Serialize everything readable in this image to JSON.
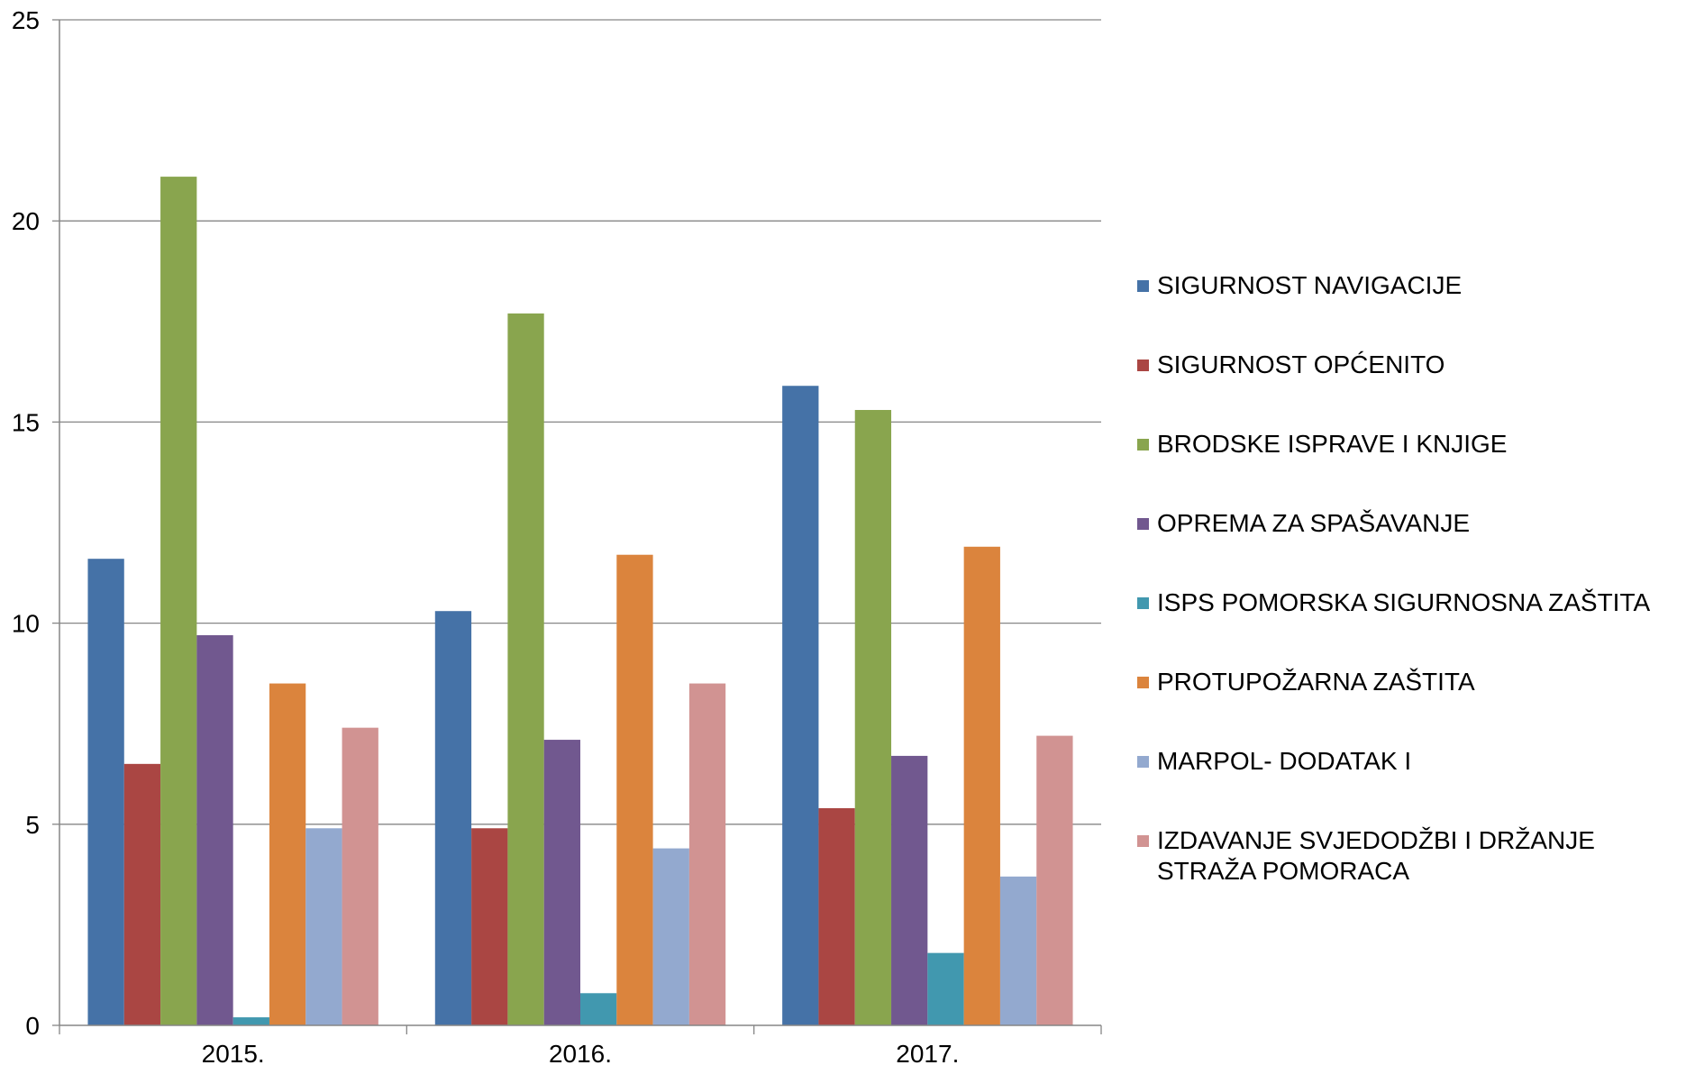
{
  "chart_data": {
    "type": "bar",
    "categories": [
      "2015.",
      "2016.",
      "2017."
    ],
    "series": [
      {
        "name": "SIGURNOST NAVIGACIJE",
        "color": "#4572A7",
        "values": [
          11.6,
          10.3,
          15.9
        ]
      },
      {
        "name": "SIGURNOST OPĆENITO",
        "color": "#AA4643",
        "values": [
          6.5,
          4.9,
          5.4
        ]
      },
      {
        "name": "BRODSKE ISPRAVE I KNJIGE",
        "color": "#89A54E",
        "values": [
          21.1,
          17.7,
          15.3
        ]
      },
      {
        "name": "OPREMA ZA SPAŠAVANJE",
        "color": "#71588F",
        "values": [
          9.7,
          7.1,
          6.7
        ]
      },
      {
        "name": "ISPS POMORSKA SIGURNOSNA ZAŠTITA",
        "color": "#4198AF",
        "values": [
          0.2,
          0.8,
          1.8
        ]
      },
      {
        "name": "PROTUPOŽARNA ZAŠTITA",
        "color": "#DB843D",
        "values": [
          8.5,
          11.7,
          11.9
        ]
      },
      {
        "name": "MARPOL- DODATAK I",
        "color": "#93A9CF",
        "values": [
          4.9,
          4.4,
          3.7
        ]
      },
      {
        "name": "IZDAVANJE SVJEDODŽBI I DRŽANJE STRAŽA POMORACA",
        "color": "#D19392",
        "values": [
          7.4,
          8.5,
          7.2
        ]
      }
    ],
    "yticks": [
      "0",
      "5",
      "10",
      "15",
      "20",
      "25"
    ],
    "ylim": [
      0,
      25
    ],
    "grid": true,
    "legend_position": "right"
  }
}
